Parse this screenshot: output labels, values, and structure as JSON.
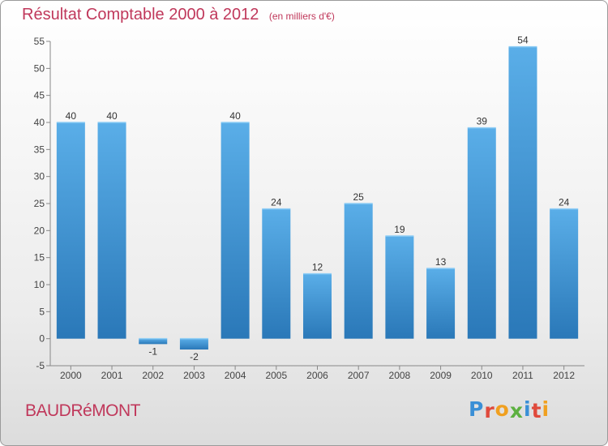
{
  "header": {
    "title": "Résultat Comptable 2000 à 2012",
    "unit_note": "(en milliers d'€)"
  },
  "footer": {
    "place": "BAUDRéMONT",
    "logo_text": "Proxiti"
  },
  "colors": {
    "accent": "#c0385b",
    "bar_top": "#5aaee8",
    "bar_bottom": "#2a78b8",
    "logo_letters": [
      "#3a8fd6",
      "#e04a3c",
      "#f0a020",
      "#5cb040",
      "#3a8fd6",
      "#e04a3c",
      "#f0a020"
    ]
  },
  "chart_data": {
    "type": "bar",
    "categories": [
      "2000",
      "2001",
      "2002",
      "2003",
      "2004",
      "2005",
      "2006",
      "2007",
      "2008",
      "2009",
      "2010",
      "2011",
      "2012"
    ],
    "values": [
      40,
      40,
      -1,
      -2,
      40,
      24,
      12,
      25,
      19,
      13,
      39,
      54,
      24
    ],
    "title": "Résultat Comptable 2000 à 2012",
    "subtitle": "(en milliers d'€)",
    "xlabel": "",
    "ylabel": "",
    "ylim": [
      -5,
      55
    ],
    "yticks": [
      -5,
      0,
      5,
      10,
      15,
      20,
      25,
      30,
      35,
      40,
      45,
      50,
      55
    ],
    "grid": false,
    "legend": "none"
  }
}
